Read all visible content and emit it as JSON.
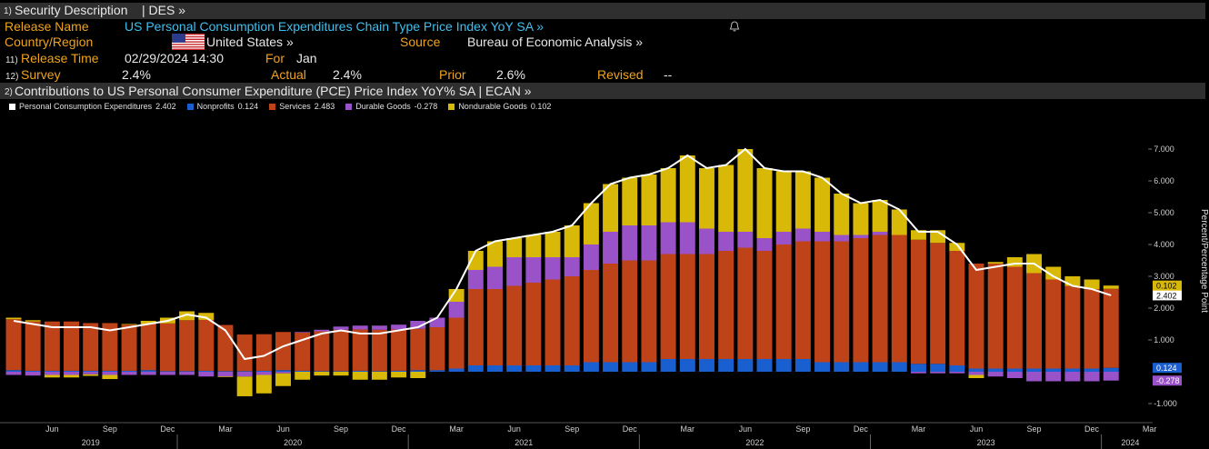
{
  "header": {
    "number": "1)",
    "title": "Security Description",
    "function": "| DES »"
  },
  "release": {
    "name_label": "Release Name",
    "name": "US Personal Consumption Expenditures Chain Type Price Index YoY SA »",
    "country_label": "Country/Region",
    "country": "United States »",
    "source_label": "Source",
    "source": "Bureau of Economic Analysis »",
    "time_number": "11)",
    "time_label": "Release Time",
    "time": "02/29/2024 14:30",
    "for_label": "For",
    "for": "Jan",
    "survey_number": "12)",
    "survey_label": "Survey",
    "survey": "2.4%",
    "actual_label": "Actual",
    "actual": "2.4%",
    "prior_label": "Prior",
    "prior": "2.6%",
    "revised_label": "Revised",
    "revised": "--"
  },
  "chart_data": {
    "type": "bar",
    "stacked": true,
    "menu_number": "2)",
    "title": "Contributions to US Personal Consumer Expenditure (PCE) Price Index YoY% SA | ECAN »",
    "y_label": "Percent/Percentage Point",
    "y_axis_side": "right",
    "grid": false,
    "categories": [
      null,
      null,
      "Jun",
      null,
      null,
      "Sep",
      null,
      null,
      "Dec",
      null,
      null,
      "Mar",
      null,
      null,
      "Jun",
      null,
      null,
      "Sep",
      null,
      null,
      "Dec",
      null,
      null,
      "Mar",
      null,
      null,
      "Jun",
      null,
      null,
      "Sep",
      null,
      null,
      "Dec",
      null,
      null,
      "Mar",
      null,
      null,
      "Jun",
      null,
      null,
      "Sep",
      null,
      null,
      "Dec",
      null,
      null,
      "Mar",
      null,
      null,
      "Jun",
      null,
      null,
      "Sep",
      null,
      null,
      "Dec",
      null,
      null,
      "Mar"
    ],
    "years": [
      "2019",
      "2020",
      "2021",
      "2022",
      "2023",
      "2024"
    ],
    "series": [
      {
        "name": "Personal Consumption Expenditures",
        "type": "line",
        "color": "#ffffff",
        "end_label": true,
        "values": [
          1.6,
          1.5,
          1.4,
          1.4,
          1.4,
          1.3,
          1.4,
          1.5,
          1.6,
          1.8,
          1.7,
          1.3,
          0.4,
          0.5,
          0.8,
          1.0,
          1.2,
          1.3,
          1.2,
          1.2,
          1.3,
          1.4,
          1.7,
          2.6,
          3.8,
          4.1,
          4.2,
          4.3,
          4.4,
          4.6,
          5.3,
          5.9,
          6.1,
          6.2,
          6.4,
          6.8,
          6.4,
          6.5,
          7.0,
          6.4,
          6.3,
          6.3,
          6.1,
          5.6,
          5.3,
          5.4,
          5.1,
          4.4,
          4.4,
          4.0,
          3.2,
          3.3,
          3.4,
          3.4,
          3.0,
          2.7,
          2.6,
          2.402,
          null,
          null
        ]
      },
      {
        "name": "Nonprofits",
        "type": "bar",
        "color": "#1a5fd0",
        "end_label": true,
        "values": [
          0.05,
          0.03,
          0.03,
          0.03,
          0.03,
          0.03,
          0.03,
          0.05,
          0.02,
          0.02,
          0.03,
          0.02,
          0.02,
          0.03,
          0.05,
          0.03,
          0.02,
          0.02,
          0.03,
          0.02,
          0.03,
          0.05,
          0.05,
          0.1,
          0.2,
          0.2,
          0.2,
          0.2,
          0.2,
          0.2,
          0.3,
          0.3,
          0.3,
          0.3,
          0.4,
          0.4,
          0.4,
          0.4,
          0.4,
          0.4,
          0.4,
          0.4,
          0.3,
          0.3,
          0.3,
          0.3,
          0.3,
          0.25,
          0.25,
          0.2,
          0.1,
          0.1,
          0.1,
          0.1,
          0.1,
          0.1,
          0.1,
          0.124,
          null,
          null
        ]
      },
      {
        "name": "Services",
        "type": "bar",
        "color": "#bf4319",
        "end_label": false,
        "values": [
          1.6,
          1.55,
          1.55,
          1.55,
          1.5,
          1.5,
          1.45,
          1.45,
          1.5,
          1.6,
          1.6,
          1.45,
          1.15,
          1.15,
          1.2,
          1.2,
          1.25,
          1.3,
          1.3,
          1.3,
          1.3,
          1.3,
          1.35,
          1.6,
          2.4,
          2.4,
          2.5,
          2.6,
          2.7,
          2.8,
          2.9,
          3.1,
          3.2,
          3.2,
          3.3,
          3.3,
          3.3,
          3.4,
          3.5,
          3.4,
          3.6,
          3.7,
          3.8,
          3.8,
          3.9,
          4.0,
          4.0,
          3.9,
          3.8,
          3.6,
          3.3,
          3.3,
          3.2,
          3.0,
          2.8,
          2.6,
          2.5,
          2.483,
          null,
          null
        ]
      },
      {
        "name": "Durable Goods",
        "type": "bar",
        "color": "#9a52c8",
        "end_label": true,
        "values": [
          -0.1,
          -0.12,
          -0.1,
          -0.1,
          -0.08,
          -0.1,
          -0.1,
          -0.1,
          -0.1,
          -0.1,
          -0.15,
          -0.15,
          -0.15,
          -0.1,
          -0.05,
          0.02,
          0.05,
          0.1,
          0.12,
          0.13,
          0.15,
          0.25,
          0.3,
          0.5,
          0.6,
          0.7,
          0.9,
          0.8,
          0.7,
          0.6,
          0.8,
          1.0,
          1.1,
          1.1,
          1.0,
          1.0,
          0.8,
          0.6,
          0.5,
          0.4,
          0.4,
          0.4,
          0.3,
          0.2,
          0.1,
          0.1,
          0.0,
          -0.05,
          -0.05,
          -0.05,
          -0.1,
          -0.15,
          -0.2,
          -0.3,
          -0.3,
          -0.3,
          -0.3,
          -0.278,
          null,
          null
        ]
      },
      {
        "name": "Nondurable Goods",
        "type": "bar",
        "color": "#d9b908",
        "end_label": true,
        "values": [
          0.05,
          0.04,
          -0.08,
          -0.08,
          -0.05,
          -0.13,
          0.02,
          0.1,
          0.18,
          0.28,
          0.22,
          -0.02,
          -0.62,
          -0.58,
          -0.4,
          -0.25,
          -0.12,
          -0.12,
          -0.25,
          -0.25,
          -0.18,
          -0.2,
          0.0,
          0.4,
          0.6,
          0.8,
          0.6,
          0.7,
          0.8,
          1.0,
          1.3,
          1.5,
          1.5,
          1.6,
          1.7,
          2.1,
          1.9,
          2.1,
          2.6,
          2.2,
          1.9,
          1.8,
          1.7,
          1.3,
          1.0,
          1.0,
          0.8,
          0.3,
          0.4,
          0.25,
          -0.1,
          0.05,
          0.3,
          0.6,
          0.4,
          0.3,
          0.3,
          0.102,
          null,
          null
        ]
      }
    ],
    "ylim": [
      -1.6,
      8
    ],
    "yticks": [
      {
        "value": -1,
        "label": "-1.000"
      },
      {
        "value": 1,
        "label": "1.000"
      },
      {
        "value": 2,
        "label": "2.000"
      },
      {
        "value": 3,
        "label": "3.000"
      },
      {
        "value": 4,
        "label": "4.000"
      },
      {
        "value": 5,
        "label": "5.000"
      },
      {
        "value": 6,
        "label": "6.000"
      },
      {
        "value": 7,
        "label": "7.000"
      }
    ]
  }
}
